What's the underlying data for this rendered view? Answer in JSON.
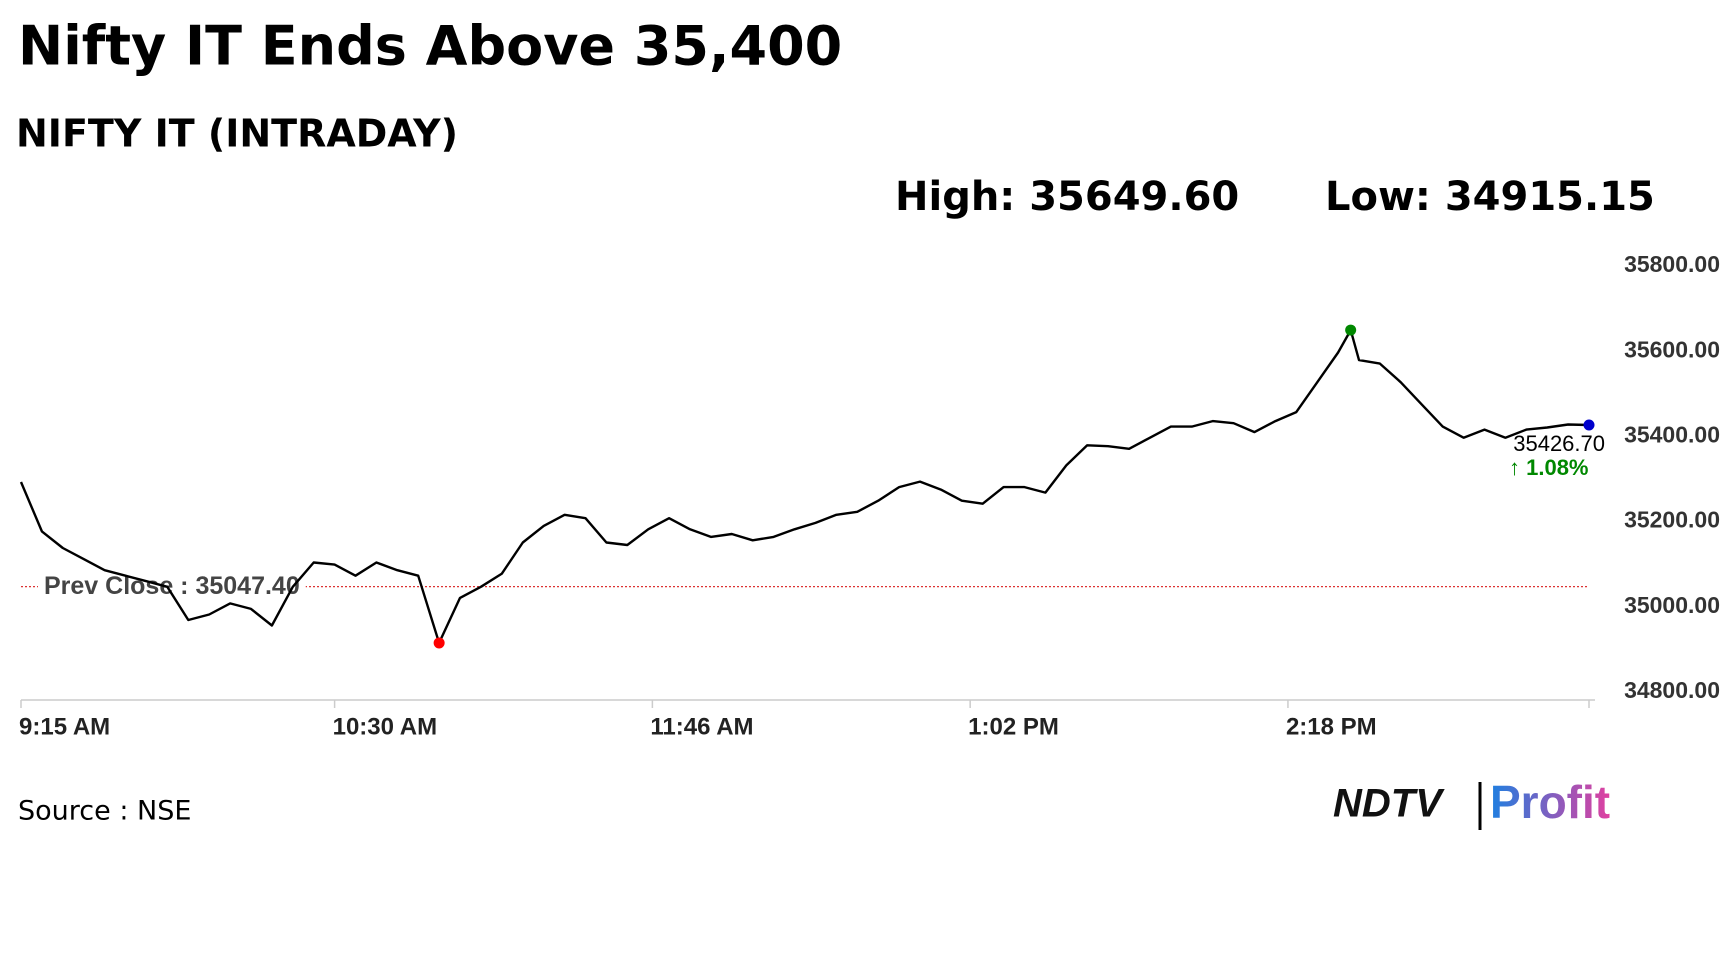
{
  "chart_data": {
    "type": "line",
    "title": "Nifty IT Ends Above 35,400",
    "subtitle": "NIFTY IT (INTRADAY)",
    "high_label": "High: 35649.60",
    "low_label": "Low: 34915.15",
    "source": "Source : NSE",
    "logo": {
      "left": "NDTV",
      "right": "Profit"
    },
    "color": "#000000",
    "x": [
      555,
      560,
      565,
      570,
      575,
      580,
      585,
      590,
      595,
      600,
      605,
      610,
      615,
      620,
      625,
      630,
      635,
      640,
      645,
      650,
      655,
      660,
      665,
      670,
      675,
      680,
      685,
      690,
      695,
      700,
      705,
      710,
      715,
      720,
      725,
      730,
      735,
      740,
      745,
      750,
      755,
      760,
      765,
      770,
      775,
      780,
      785,
      790,
      795,
      800,
      805,
      810,
      815,
      820,
      825,
      830,
      835,
      840,
      845,
      850,
      855,
      860,
      865,
      870,
      873,
      875,
      880,
      885,
      890,
      895,
      900,
      905,
      910,
      915,
      920,
      925,
      930
    ],
    "values": [
      35293,
      35177,
      35138,
      35112,
      35086,
      35073,
      35060,
      35047,
      34969,
      34982,
      35008,
      34995,
      34956,
      35047,
      35104,
      35099,
      35073,
      35104,
      35086,
      35073,
      34915.15,
      35021,
      35047,
      35078,
      35151,
      35190,
      35216,
      35208,
      35151,
      35145,
      35182,
      35208,
      35182,
      35164,
      35171,
      35156,
      35164,
      35182,
      35197,
      35216,
      35223,
      35249,
      35281,
      35294,
      35275,
      35249,
      35242,
      35281,
      35281,
      35268,
      35332,
      35379,
      35377,
      35371,
      35397,
      35423,
      35423,
      35436,
      35431,
      35410,
      35436,
      35457,
      35527,
      35597,
      35649.6,
      35579,
      35571,
      35527,
      35475,
      35423,
      35397,
      35416,
      35397,
      35416,
      35421,
      35428,
      35426.7
    ],
    "low_index": 20,
    "high_index": 64,
    "last_label": "35426.70",
    "change_label": "↑ 1.08%",
    "prev_close": {
      "value": 35047.4,
      "label": "Prev Close : 35047.40"
    },
    "xlim": [
      555,
      930
    ],
    "xticks": [
      {
        "value": 555,
        "label": "9:15 AM"
      },
      {
        "value": 630,
        "label": "10:30 AM"
      },
      {
        "value": 706,
        "label": "11:46 AM"
      },
      {
        "value": 782,
        "label": "1:02 PM"
      },
      {
        "value": 858,
        "label": "2:18 PM"
      }
    ],
    "ylim": [
      34800,
      35800
    ],
    "yticks": [
      {
        "value": 34800,
        "label": "34800.00"
      },
      {
        "value": 35000,
        "label": "35000.00"
      },
      {
        "value": 35200,
        "label": "35200.00"
      },
      {
        "value": 35400,
        "label": "35400.00"
      },
      {
        "value": 35600,
        "label": "35600.00"
      },
      {
        "value": 35800,
        "label": "35800.00"
      }
    ]
  }
}
